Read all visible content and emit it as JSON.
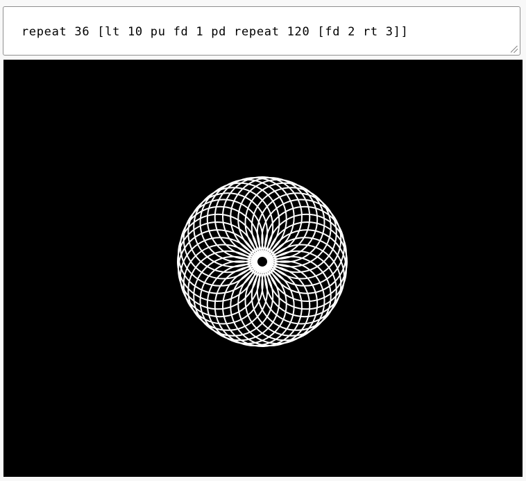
{
  "editor": {
    "code": "repeat 36 [lt 10 pu fd 1 pd repeat 120 [fd 2 rt 3]]"
  },
  "canvas": {
    "background": "#000000",
    "pen_color": "#ffffff",
    "circle_count": 36,
    "turn_angle_deg": 10
  }
}
